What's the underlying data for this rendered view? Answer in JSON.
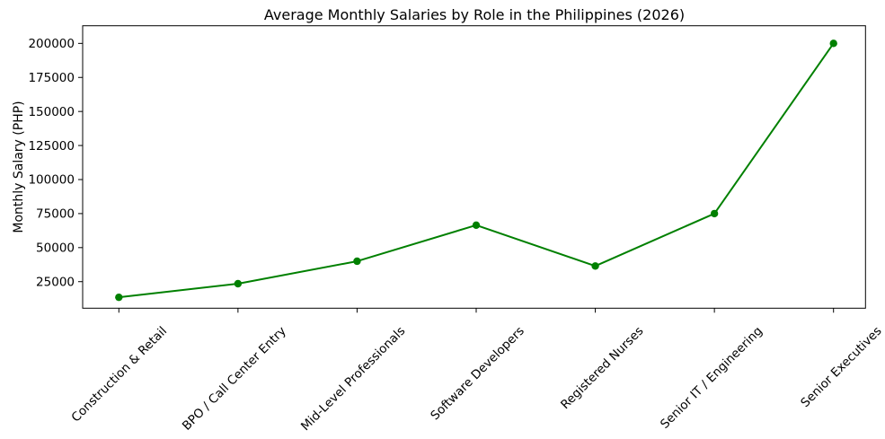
{
  "figure": {
    "title": "Average Monthly Salaries by Role in the Philippines (2026)",
    "y_axis_label": "Monthly Salary (PHP)"
  },
  "chart_data": {
    "type": "line",
    "title": "Average Monthly Salaries by Role in the Philippines (2026)",
    "xlabel": "",
    "ylabel": "Monthly Salary (PHP)",
    "categories": [
      "Construction & Retail",
      "BPO / Call Center Entry",
      "Mid-Level Professionals",
      "Software Developers",
      "Registered Nurses",
      "Senior IT / Engineering",
      "Senior Executives"
    ],
    "values": [
      13500,
      23500,
      40000,
      66500,
      36500,
      75000,
      200000
    ],
    "yticks": [
      25000,
      50000,
      75000,
      100000,
      125000,
      150000,
      175000,
      200000
    ],
    "ylim": [
      5500,
      212950
    ],
    "line_color": "#008000",
    "marker": "circle",
    "marker_color": "#008000",
    "grid": false,
    "legend_position": "none",
    "x_tick_rotation_deg": 45
  }
}
